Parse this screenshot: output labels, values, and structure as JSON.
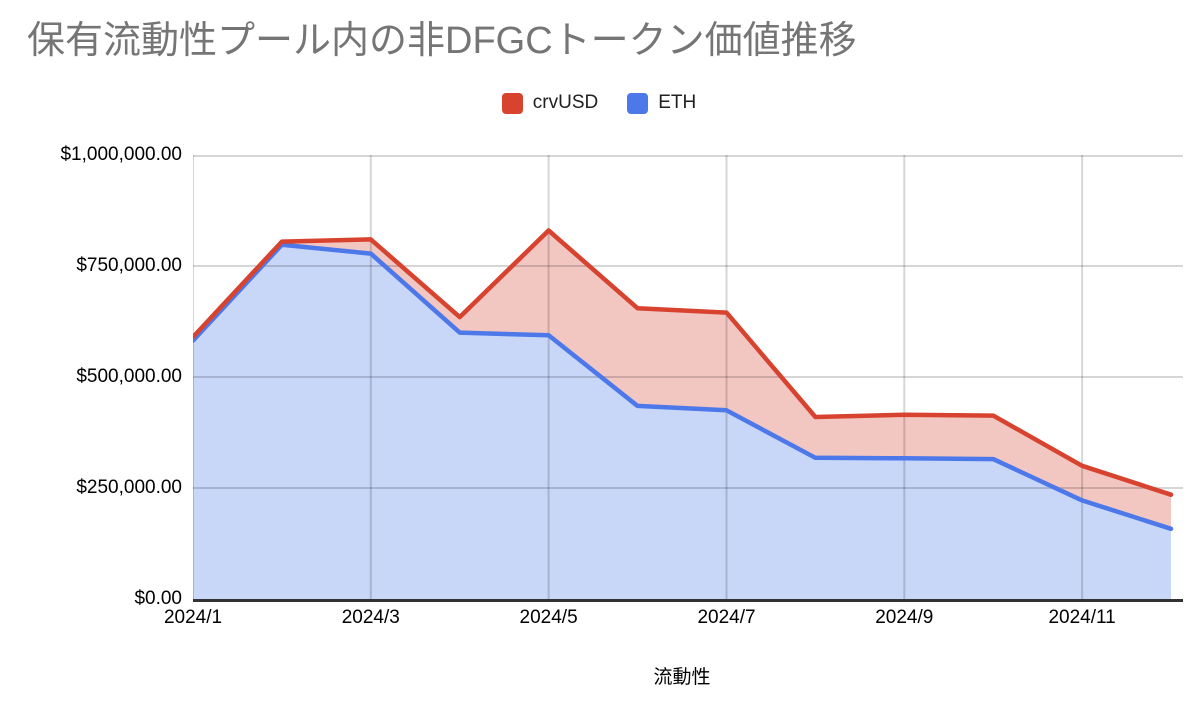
{
  "title": "保有流動性プール内の非DFGCトークン価値推移",
  "legend": {
    "items": [
      {
        "label": "crvUSD",
        "color": "#D8432F"
      },
      {
        "label": "ETH",
        "color": "#4D78EA"
      }
    ]
  },
  "chart_data": {
    "type": "area",
    "stacked": false,
    "title": "保有流動性プール内の非DFGCトークン価値推移",
    "xlabel": "流動性",
    "ylabel": "",
    "x": [
      "2024/1",
      "2024/2",
      "2024/3",
      "2024/4",
      "2024/5",
      "2024/6",
      "2024/7",
      "2024/8",
      "2024/9",
      "2024/10",
      "2024/11",
      "2024/12"
    ],
    "x_tick_step": 2,
    "series": [
      {
        "name": "crvUSD",
        "color": "#D8432F",
        "fill": "#F2C6C1",
        "values": [
          590000,
          805000,
          810000,
          635000,
          830000,
          655000,
          645000,
          410000,
          415000,
          413000,
          300000,
          235000
        ]
      },
      {
        "name": "ETH",
        "color": "#4D78EA",
        "fill": "#C8D6F8",
        "values": [
          582000,
          798000,
          778000,
          600000,
          594000,
          435000,
          425000,
          318000,
          317000,
          315000,
          222000,
          158000
        ]
      }
    ],
    "ylim": [
      0,
      1000000
    ],
    "y_ticks": [
      0,
      250000,
      500000,
      750000,
      1000000
    ],
    "y_tick_labels": [
      "$0.00",
      "$250,000.00",
      "$500,000.00",
      "$750,000.00",
      "$1,000,000.00"
    ],
    "grid": true,
    "legend_position": "top",
    "colors": {
      "title_text": "#757575",
      "axis_text": "#000000",
      "gridline": "#D9D9D9",
      "axis_line": "#333333"
    }
  }
}
